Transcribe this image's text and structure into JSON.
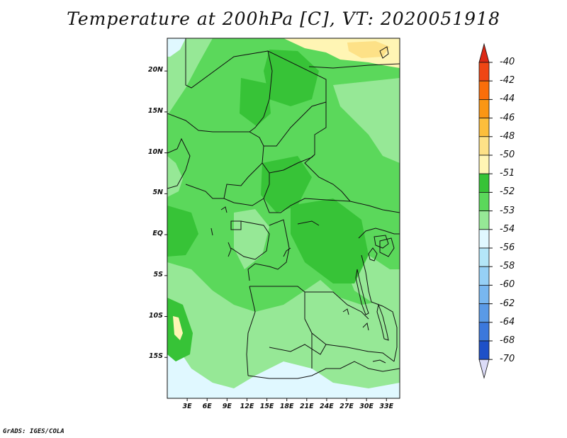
{
  "title": "Temperature at 200hPa [C], VT: 2020051918",
  "footer": "GrADS: IGES/COLA",
  "map": {
    "variable": "Temperature",
    "level": "200hPa",
    "units": "C",
    "valid_time": "2020051918",
    "lon_range": [
      0,
      35
    ],
    "lat_range": [
      -20,
      24
    ],
    "lat_ticks": [
      {
        "value": 20,
        "label": "20N"
      },
      {
        "value": 15,
        "label": "15N"
      },
      {
        "value": 10,
        "label": "10N"
      },
      {
        "value": 5,
        "label": "5N"
      },
      {
        "value": 0,
        "label": "EQ"
      },
      {
        "value": -5,
        "label": "5S"
      },
      {
        "value": -10,
        "label": "10S"
      },
      {
        "value": -15,
        "label": "15S"
      }
    ],
    "lon_ticks": [
      {
        "value": 3,
        "label": "3E"
      },
      {
        "value": 6,
        "label": "6E"
      },
      {
        "value": 9,
        "label": "9E"
      },
      {
        "value": 12,
        "label": "12E"
      },
      {
        "value": 15,
        "label": "15E"
      },
      {
        "value": 18,
        "label": "18E"
      },
      {
        "value": 21,
        "label": "21E"
      },
      {
        "value": 24,
        "label": "24E"
      },
      {
        "value": 27,
        "label": "27E"
      },
      {
        "value": 30,
        "label": "30E"
      },
      {
        "value": 33,
        "label": "33E"
      }
    ]
  },
  "colorbar": {
    "levels": [
      {
        "label": "-40",
        "color": "#e0301e"
      },
      {
        "label": "-42",
        "color": "#f04614"
      },
      {
        "label": "-44",
        "color": "#fa6e0a"
      },
      {
        "label": "-46",
        "color": "#fa9614"
      },
      {
        "label": "-48",
        "color": "#fcbe3c"
      },
      {
        "label": "-50",
        "color": "#fde187"
      },
      {
        "label": "-51",
        "color": "#fff5b4"
      },
      {
        "label": "-52",
        "color": "#37c337"
      },
      {
        "label": "-53",
        "color": "#5bd85b"
      },
      {
        "label": "-54",
        "color": "#96e896"
      },
      {
        "label": "-56",
        "color": "#e0f8ff"
      },
      {
        "label": "-58",
        "color": "#b4e6f8"
      },
      {
        "label": "-60",
        "color": "#96d0f6"
      },
      {
        "label": "-62",
        "color": "#78b7f0"
      },
      {
        "label": "-64",
        "color": "#5a9ae6"
      },
      {
        "label": "-68",
        "color": "#3c78dc"
      },
      {
        "label": "-70",
        "color": "#1e50c8"
      }
    ],
    "under_color": "#0f2896",
    "over_color": "#0a0a6e",
    "tail_color": "#dcdcf8",
    "head_color": "#dc2814"
  }
}
